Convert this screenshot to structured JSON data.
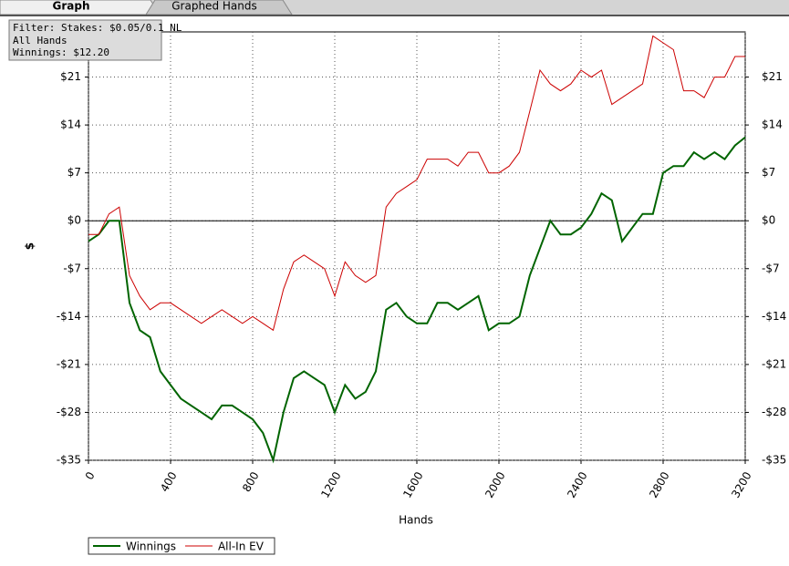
{
  "tabs": [
    "Graph",
    "Graphed Hands"
  ],
  "filter_box": {
    "lines": [
      "Filter: Stakes: $0.05/0.1 NL",
      "All Hands",
      "Winnings: $12.20"
    ]
  },
  "chart_data": {
    "type": "line",
    "x_label": "Hands",
    "y_label": "$",
    "x": [
      0,
      50,
      100,
      150,
      200,
      250,
      300,
      350,
      400,
      450,
      500,
      550,
      600,
      650,
      700,
      750,
      800,
      850,
      900,
      950,
      1000,
      1050,
      1100,
      1150,
      1200,
      1250,
      1300,
      1350,
      1400,
      1450,
      1500,
      1550,
      1600,
      1650,
      1700,
      1750,
      1800,
      1850,
      1900,
      1950,
      2000,
      2050,
      2100,
      2150,
      2200,
      2250,
      2300,
      2350,
      2400,
      2450,
      2500,
      2550,
      2600,
      2650,
      2700,
      2750,
      2800,
      2850,
      2900,
      2950,
      3000,
      3050,
      3100,
      3150,
      3200
    ],
    "series": [
      {
        "name": "Winnings",
        "color": "#006400",
        "values": [
          -3,
          -2,
          0,
          0,
          -12,
          -16,
          -17,
          -22,
          -24,
          -26,
          -27,
          -28,
          -29,
          -27,
          -27,
          -28,
          -29,
          -31,
          -35,
          -28,
          -23,
          -22,
          -23,
          -24,
          -28,
          -24,
          -26,
          -25,
          -22,
          -13,
          -12,
          -14,
          -15,
          -15,
          -12,
          -12,
          -13,
          -12,
          -11,
          -16,
          -15,
          -15,
          -14,
          -8,
          -4,
          0,
          -2,
          -2,
          -1,
          1,
          4,
          3,
          -3,
          -1,
          1,
          1,
          7,
          8,
          8,
          10,
          9,
          10,
          9,
          11,
          12.2
        ]
      },
      {
        "name": "All-In EV",
        "color": "#cc0000",
        "values": [
          -2,
          -2,
          1,
          2,
          -8,
          -11,
          -13,
          -12,
          -12,
          -13,
          -14,
          -15,
          -14,
          -13,
          -14,
          -15,
          -14,
          -15,
          -16,
          -10,
          -6,
          -5,
          -6,
          -7,
          -11,
          -6,
          -8,
          -9,
          -8,
          2,
          4,
          5,
          6,
          9,
          9,
          9,
          8,
          10,
          10,
          7,
          7,
          8,
          10,
          16,
          22,
          20,
          19,
          20,
          22,
          21,
          22,
          17,
          18,
          19,
          20,
          27,
          26,
          25,
          19,
          19,
          18,
          21,
          21,
          24,
          24
        ]
      }
    ],
    "xlim": [
      0,
      3200
    ],
    "xticks": [
      0,
      400,
      800,
      1200,
      1600,
      2000,
      2400,
      2800,
      3200
    ],
    "ylim": [
      -35,
      27.6
    ],
    "yticks": [
      {
        "value": -35,
        "label": "-$35"
      },
      {
        "value": -28,
        "label": "-$28"
      },
      {
        "value": -21,
        "label": "-$21"
      },
      {
        "value": -14,
        "label": "-$14"
      },
      {
        "value": -7,
        "label": "-$7"
      },
      {
        "value": 0,
        "label": "$0"
      },
      {
        "value": 7,
        "label": "$7"
      },
      {
        "value": 14,
        "label": "$14"
      },
      {
        "value": 21,
        "label": "$21"
      }
    ],
    "grid": true,
    "legend": "bottom-left"
  }
}
